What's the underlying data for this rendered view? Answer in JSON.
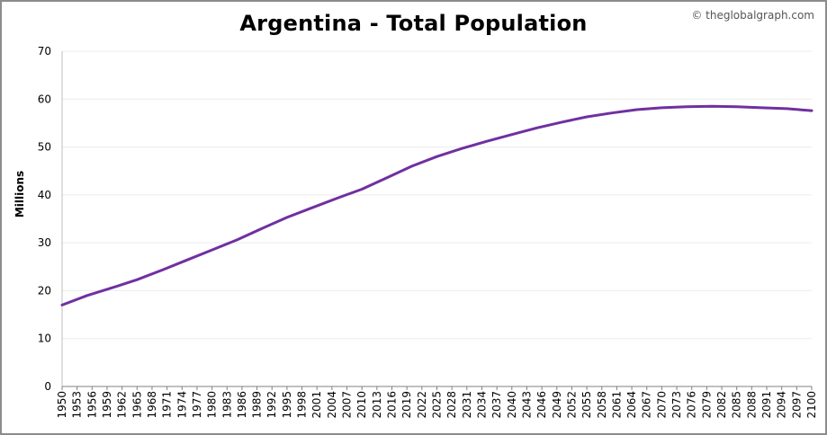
{
  "title": "Argentina - Total Population",
  "credit": "© theglobalgraph.com",
  "chart_data": {
    "type": "line",
    "title": "Argentina - Total Population",
    "xlabel": "",
    "ylabel": "Millions",
    "ylim": [
      0,
      70
    ],
    "yticks": [
      0,
      10,
      20,
      30,
      40,
      50,
      60,
      70
    ],
    "grid": true,
    "xtick_labels": [
      "1950",
      "1953",
      "1956",
      "1959",
      "1962",
      "1965",
      "1968",
      "1971",
      "1974",
      "1977",
      "1980",
      "1983",
      "1986",
      "1989",
      "1992",
      "1995",
      "1998",
      "2001",
      "2004",
      "2007",
      "2010",
      "2013",
      "2016",
      "2019",
      "2022",
      "2025",
      "2028",
      "2031",
      "2034",
      "2037",
      "2040",
      "2043",
      "2046",
      "2049",
      "2052",
      "2055",
      "2058",
      "2061",
      "2064",
      "2067",
      "2070",
      "2073",
      "2076",
      "2079",
      "2082",
      "2085",
      "2088",
      "2091",
      "2094",
      "2097",
      "2100"
    ],
    "line_color": "#7030a0",
    "series": [
      {
        "x": [
          1950,
          1955,
          1960,
          1965,
          1970,
          1975,
          1980,
          1985,
          1990,
          1995,
          2000,
          2005,
          2010,
          2015,
          2020,
          2025,
          2030,
          2035,
          2040,
          2045,
          2050,
          2055,
          2060,
          2065,
          2070,
          2075,
          2080,
          2085,
          2090,
          2095,
          2100
        ],
        "values": [
          17.0,
          19.0,
          20.6,
          22.3,
          24.3,
          26.4,
          28.5,
          30.6,
          33.0,
          35.3,
          37.3,
          39.3,
          41.2,
          43.6,
          46.0,
          48.0,
          49.7,
          51.2,
          52.6,
          54.0,
          55.2,
          56.3,
          57.1,
          57.8,
          58.2,
          58.4,
          58.5,
          58.4,
          58.2,
          58.0,
          57.6
        ]
      }
    ]
  }
}
